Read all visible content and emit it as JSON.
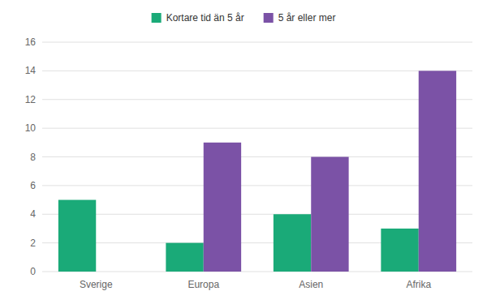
{
  "chart_data": {
    "type": "bar",
    "categories": [
      "Sverige",
      "Europa",
      "Asien",
      "Afrika"
    ],
    "series": [
      {
        "name": "Kortare tid än 5 år",
        "color": "#1aaa78",
        "values": [
          5,
          2,
          4,
          3
        ]
      },
      {
        "name": "5 år eller mer",
        "color": "#7b52a6",
        "values": [
          null,
          9,
          8,
          14
        ]
      }
    ],
    "ylim": [
      0,
      16
    ],
    "yticks": [
      0,
      2,
      4,
      6,
      8,
      10,
      12,
      14,
      16
    ],
    "grid": true,
    "legend": "top"
  }
}
